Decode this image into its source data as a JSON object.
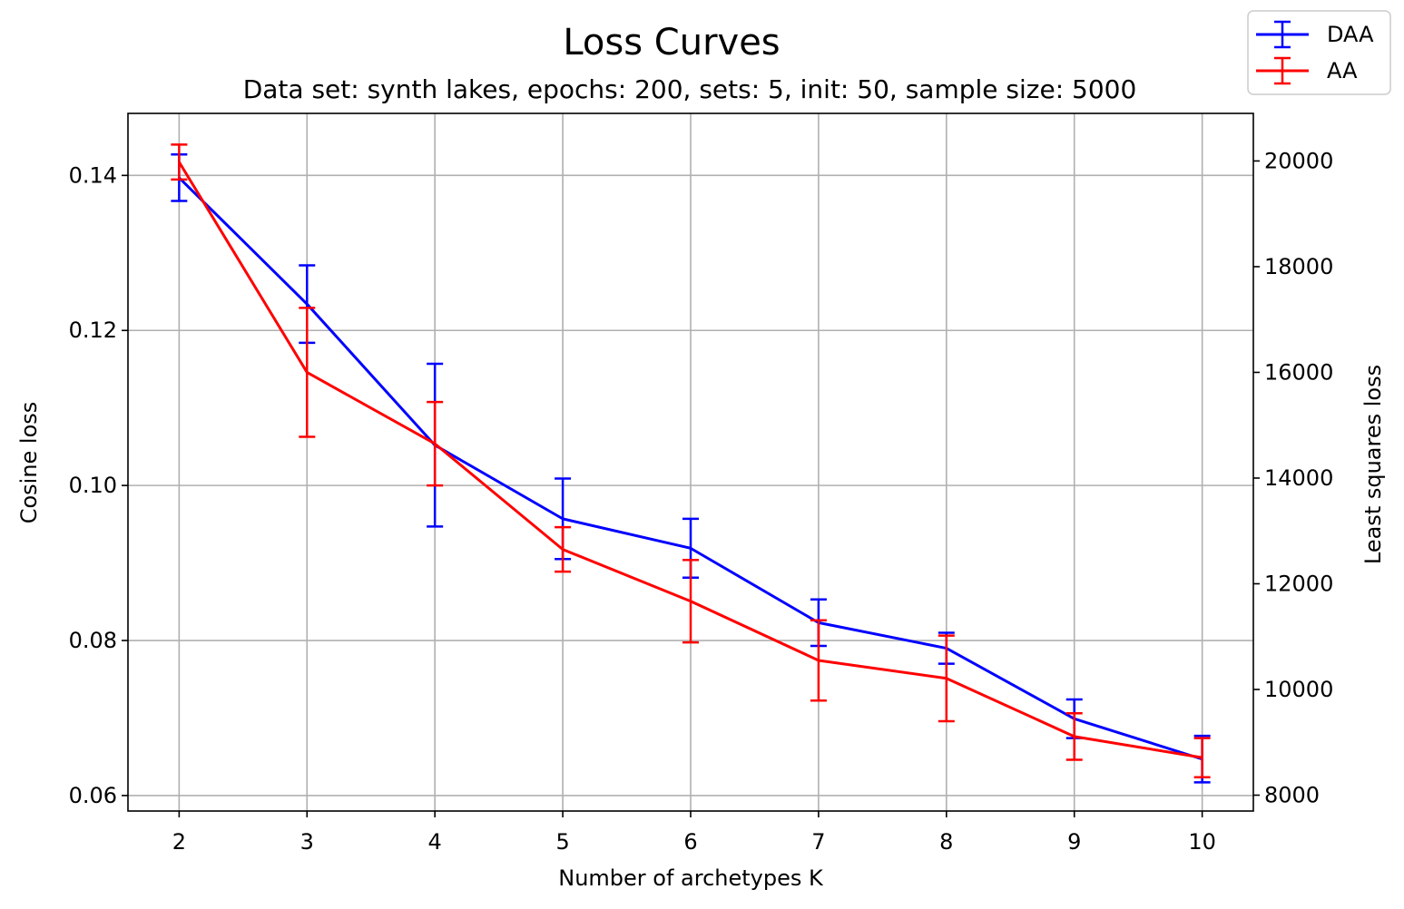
{
  "chart_data": {
    "type": "line",
    "title": "Loss Curves",
    "subtitle": "Data set:  synth lakes, epochs: 200, sets: 5, init: 50, sample size: 5000",
    "xlabel": "Number of archetypes K",
    "ylabel": "Cosine loss",
    "y2label": "Least squares loss",
    "x": [
      2,
      3,
      4,
      5,
      6,
      7,
      8,
      9,
      10
    ],
    "x_ticks": [
      "2",
      "3",
      "4",
      "5",
      "6",
      "7",
      "8",
      "9",
      "10"
    ],
    "xlim": [
      1.6,
      10.4
    ],
    "ylim": [
      0.058,
      0.148
    ],
    "y_ticks": [
      0.06,
      0.08,
      0.1,
      0.12,
      0.14
    ],
    "y_tick_labels": [
      "0.06",
      "0.08",
      "0.10",
      "0.12",
      "0.14"
    ],
    "y2lim": [
      7700,
      20900
    ],
    "y2_ticks": [
      8000,
      10000,
      12000,
      14000,
      16000,
      18000,
      20000
    ],
    "y2_tick_labels": [
      "8000",
      "10000",
      "12000",
      "14000",
      "16000",
      "18000",
      "20000"
    ],
    "grid": true,
    "legend_position": "top-right",
    "series": [
      {
        "name": "DAA",
        "axis": "left",
        "color": "#0000ff",
        "values": [
          0.1397,
          0.1234,
          0.1052,
          0.0957,
          0.0919,
          0.0823,
          0.079,
          0.0699,
          0.0647
        ],
        "errors": [
          0.003,
          0.005,
          0.0105,
          0.0052,
          0.0038,
          0.003,
          0.002,
          0.0025,
          0.003
        ]
      },
      {
        "name": "AA",
        "axis": "right",
        "color": "#ff0000",
        "values": [
          19980,
          16000,
          14650,
          12650,
          11670,
          10550,
          10210,
          9110,
          8710
        ],
        "errors": [
          330,
          1220,
          790,
          420,
          780,
          760,
          810,
          440,
          370
        ]
      }
    ]
  }
}
